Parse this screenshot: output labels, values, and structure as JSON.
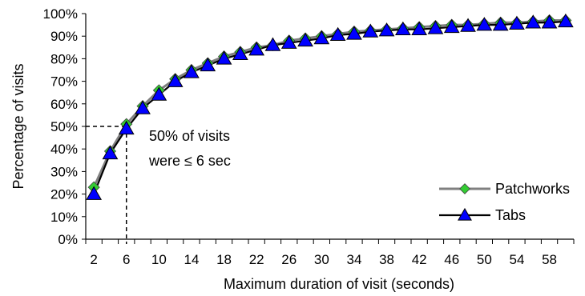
{
  "chart_data": {
    "type": "line",
    "title": "",
    "xlabel": "Maximum duration of visit (seconds)",
    "ylabel": "Percentage of visits",
    "x": [
      2,
      4,
      6,
      8,
      10,
      12,
      14,
      16,
      18,
      20,
      22,
      24,
      26,
      28,
      30,
      32,
      34,
      36,
      38,
      40,
      42,
      44,
      46,
      48,
      50,
      52,
      54,
      56,
      58,
      60
    ],
    "xticks": [
      "2",
      "6",
      "10",
      "14",
      "18",
      "22",
      "26",
      "30",
      "34",
      "38",
      "42",
      "46",
      "50",
      "54",
      "58"
    ],
    "yticks": [
      "0%",
      "10%",
      "20%",
      "30%",
      "40%",
      "50%",
      "60%",
      "70%",
      "80%",
      "90%",
      "100%"
    ],
    "xlim": [
      1,
      61
    ],
    "ylim": [
      0,
      100
    ],
    "grid": false,
    "legend_position": "bottom-right",
    "series": [
      {
        "name": "Patchworks",
        "marker": "diamond",
        "line_color": "#808080",
        "marker_color": "#33cc33",
        "values": [
          23,
          39,
          51,
          59,
          66,
          71,
          75,
          78,
          81,
          83,
          85,
          86,
          88,
          89,
          90,
          91,
          92,
          92.5,
          93,
          93.5,
          94,
          94.5,
          95,
          95,
          95.5,
          96,
          96,
          96.5,
          97,
          97
        ]
      },
      {
        "name": "Tabs",
        "marker": "triangle",
        "line_color": "#000000",
        "marker_color": "#0000ff",
        "values": [
          20,
          38,
          49,
          58,
          64,
          70,
          74,
          77,
          80,
          82,
          84,
          86,
          87,
          88,
          89,
          90.5,
          91,
          92,
          92.5,
          93,
          93,
          93.5,
          94,
          94.5,
          95,
          95,
          95.5,
          96,
          96,
          96.5
        ]
      }
    ],
    "annotation": {
      "line1": "50% of visits",
      "line2": "were ≤ 6 sec",
      "x": 6,
      "y": 50
    }
  }
}
